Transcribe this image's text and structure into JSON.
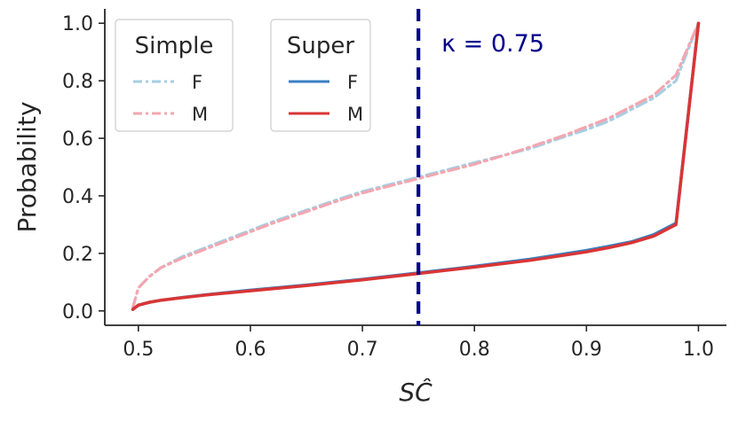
{
  "chart_data": {
    "type": "line",
    "title": "",
    "xlabel": "SĈ",
    "ylabel": "Probability",
    "xlim": [
      0.47,
      1.025
    ],
    "ylim": [
      -0.05,
      1.05
    ],
    "xticks": [
      "0.5",
      "0.6",
      "0.7",
      "0.8",
      "0.9",
      "1.0"
    ],
    "yticks": [
      "0.0",
      "0.2",
      "0.4",
      "0.6",
      "0.8",
      "1.0"
    ],
    "grid": false,
    "legend": [
      {
        "title": "Simple",
        "placement": "top-left",
        "entries": [
          "F",
          "M"
        ]
      },
      {
        "title": "Super",
        "placement": "top-left",
        "entries": [
          "F",
          "M"
        ]
      }
    ],
    "series": [
      {
        "group": "Simple",
        "name": "F",
        "color": "#a6cee3",
        "linestyle": "dashdot",
        "x": [
          0.495,
          0.5,
          0.51,
          0.52,
          0.54,
          0.56,
          0.58,
          0.6,
          0.62,
          0.65,
          0.68,
          0.7,
          0.72,
          0.75,
          0.78,
          0.8,
          0.83,
          0.85,
          0.88,
          0.9,
          0.92,
          0.94,
          0.96,
          0.98,
          1.0
        ],
        "y": [
          0.01,
          0.08,
          0.12,
          0.15,
          0.19,
          0.22,
          0.25,
          0.28,
          0.31,
          0.35,
          0.39,
          0.415,
          0.435,
          0.465,
          0.495,
          0.515,
          0.545,
          0.565,
          0.605,
          0.63,
          0.66,
          0.7,
          0.74,
          0.8,
          1.0
        ]
      },
      {
        "group": "Simple",
        "name": "M",
        "color": "#f4a6b0",
        "linestyle": "dashdot",
        "x": [
          0.495,
          0.5,
          0.51,
          0.52,
          0.54,
          0.56,
          0.58,
          0.6,
          0.62,
          0.65,
          0.68,
          0.7,
          0.72,
          0.75,
          0.78,
          0.8,
          0.83,
          0.85,
          0.88,
          0.9,
          0.92,
          0.94,
          0.96,
          0.98,
          1.0
        ],
        "y": [
          0.01,
          0.08,
          0.12,
          0.15,
          0.185,
          0.215,
          0.245,
          0.275,
          0.305,
          0.345,
          0.385,
          0.41,
          0.43,
          0.46,
          0.49,
          0.51,
          0.545,
          0.57,
          0.61,
          0.64,
          0.67,
          0.71,
          0.75,
          0.82,
          1.0
        ]
      },
      {
        "group": "Super",
        "name": "F",
        "color": "#3a7fc4",
        "linestyle": "solid",
        "x": [
          0.495,
          0.5,
          0.51,
          0.52,
          0.54,
          0.56,
          0.6,
          0.65,
          0.7,
          0.75,
          0.8,
          0.85,
          0.9,
          0.92,
          0.94,
          0.96,
          0.98,
          1.0
        ],
        "y": [
          0.005,
          0.02,
          0.03,
          0.037,
          0.047,
          0.056,
          0.072,
          0.09,
          0.11,
          0.132,
          0.155,
          0.18,
          0.21,
          0.225,
          0.24,
          0.265,
          0.305,
          1.0
        ]
      },
      {
        "group": "Super",
        "name": "M",
        "color": "#d93535",
        "linestyle": "solid",
        "x": [
          0.495,
          0.5,
          0.51,
          0.52,
          0.54,
          0.56,
          0.6,
          0.65,
          0.7,
          0.75,
          0.8,
          0.85,
          0.9,
          0.92,
          0.94,
          0.96,
          0.98,
          1.0
        ],
        "y": [
          0.005,
          0.02,
          0.03,
          0.037,
          0.046,
          0.055,
          0.07,
          0.088,
          0.108,
          0.13,
          0.152,
          0.176,
          0.205,
          0.22,
          0.237,
          0.26,
          0.3,
          1.0
        ]
      }
    ],
    "annotations": [
      {
        "type": "vline",
        "x": 0.75,
        "color": "#00008b",
        "linestyle": "dashed",
        "label": "κ = 0.75"
      }
    ]
  }
}
